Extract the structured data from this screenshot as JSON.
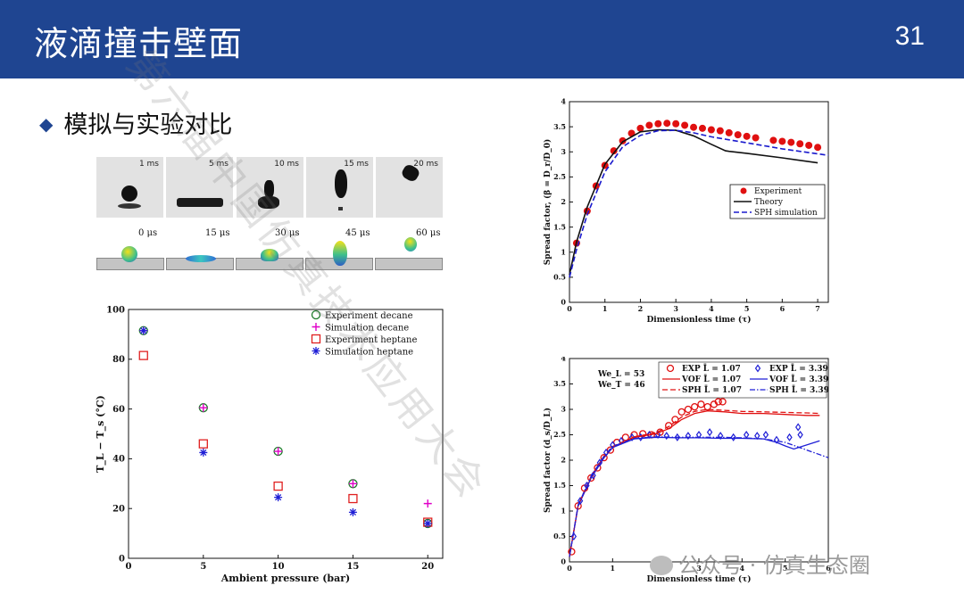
{
  "slide": {
    "title": "液滴撞击壁面",
    "page_number": "31",
    "bullet": "模拟与实验对比",
    "accent": "#1f4591"
  },
  "experiment_frames": [
    "1 ms",
    "5 ms",
    "10 ms",
    "15 ms",
    "20 ms"
  ],
  "simulation_frames": [
    "0 μs",
    "15 μs",
    "30 μs",
    "45 μs",
    "60 μs"
  ],
  "watermark": "第六届中国仿真技术应用大会",
  "logo": "公众号 · 仿真生态圈",
  "chart_data": [
    {
      "type": "scatter",
      "xlabel": "Ambient pressure (bar)",
      "ylabel": "T_L − T_s (°C)",
      "xlim": [
        0,
        21
      ],
      "ylim": [
        0,
        100
      ],
      "xticks": [
        0,
        5,
        10,
        15,
        20
      ],
      "yticks": [
        0,
        20,
        40,
        60,
        80,
        100
      ],
      "legend_position": "top-right",
      "series": [
        {
          "name": "Experiment decane",
          "marker": "circle",
          "color": "#1e7b2b",
          "x": [
            1,
            5,
            10,
            15,
            20
          ],
          "y": [
            91.5,
            60.5,
            43,
            30,
            14
          ]
        },
        {
          "name": "Simulation  decane",
          "marker": "plus",
          "color": "#e000c8",
          "x": [
            1,
            5,
            10,
            15,
            20
          ],
          "y": [
            91.5,
            60.5,
            43,
            30,
            22
          ]
        },
        {
          "name": "Experiment heptane",
          "marker": "square",
          "color": "#e02020",
          "x": [
            1,
            5,
            10,
            15,
            20
          ],
          "y": [
            81.5,
            46,
            29,
            24,
            14.5
          ]
        },
        {
          "name": "Simulation  heptane",
          "marker": "asterisk",
          "color": "#1f1fd6",
          "x": [
            1,
            5,
            10,
            15,
            20
          ],
          "y": [
            91.5,
            42.5,
            24.5,
            18.5,
            14
          ]
        }
      ]
    },
    {
      "type": "line",
      "xlabel": "Dimensionless time (τ)",
      "ylabel": "Spread factor, (β = D_r/D_0)",
      "xlim": [
        0,
        7.3
      ],
      "ylim": [
        0,
        4
      ],
      "xticks": [
        0,
        1,
        2,
        3,
        4,
        5,
        6,
        7
      ],
      "yticks": [
        0,
        0.5,
        1,
        1.5,
        2,
        2.5,
        3,
        3.5,
        4
      ],
      "legend_position": "right",
      "series": [
        {
          "name": "Experiment",
          "style": "dots",
          "color": "#e01010",
          "x": [
            0.2,
            0.5,
            0.75,
            1.0,
            1.25,
            1.5,
            1.75,
            2.0,
            2.25,
            2.5,
            2.75,
            3.0,
            3.25,
            3.5,
            3.75,
            4.0,
            4.25,
            4.5,
            4.75,
            5.0,
            5.25,
            5.75,
            6.0,
            6.25,
            6.5,
            6.75,
            7.0
          ],
          "y": [
            1.18,
            1.82,
            2.32,
            2.73,
            3.02,
            3.22,
            3.37,
            3.47,
            3.53,
            3.56,
            3.57,
            3.56,
            3.53,
            3.49,
            3.47,
            3.44,
            3.42,
            3.38,
            3.34,
            3.31,
            3.28,
            3.23,
            3.21,
            3.19,
            3.16,
            3.13,
            3.09
          ]
        },
        {
          "name": "Theory",
          "style": "solid",
          "color": "#111111",
          "x": [
            0,
            0.2,
            0.5,
            1.0,
            1.5,
            2.0,
            2.5,
            3.0,
            3.5,
            4.0,
            4.4,
            4.5,
            5.0,
            6.0,
            7.0
          ],
          "y": [
            0.55,
            1.2,
            1.9,
            2.75,
            3.2,
            3.4,
            3.44,
            3.43,
            3.32,
            3.15,
            3.02,
            3.01,
            2.97,
            2.88,
            2.78
          ]
        },
        {
          "name": "SPH simulation",
          "style": "dashed",
          "color": "#1a1acd",
          "x": [
            0,
            0.2,
            0.5,
            1.0,
            1.5,
            2.0,
            2.5,
            3.0,
            3.5,
            4.0,
            5.0,
            6.0,
            7.0,
            7.3
          ],
          "y": [
            0.5,
            1.05,
            1.75,
            2.6,
            3.1,
            3.33,
            3.42,
            3.43,
            3.38,
            3.3,
            3.18,
            3.06,
            2.96,
            2.93
          ]
        }
      ]
    },
    {
      "type": "line",
      "xlabel": "Dimensionless time (τ)",
      "ylabel": "Spread factor (d_s/D_L)",
      "xlim": [
        0,
        6
      ],
      "ylim": [
        0,
        4
      ],
      "xticks": [
        0,
        1,
        2,
        3,
        4,
        5,
        6
      ],
      "yticks": [
        0,
        0.5,
        1,
        1.5,
        2,
        2.5,
        3,
        3.5,
        4
      ],
      "annotations": [
        "We_L = 53",
        "We_T = 46"
      ],
      "legend_position": "top-right",
      "series": [
        {
          "name": "EXP L̄ = 1.07",
          "style": "open-circles",
          "color": "#e01010",
          "x": [
            0.05,
            0.2,
            0.35,
            0.5,
            0.65,
            0.8,
            0.95,
            1.1,
            1.3,
            1.5,
            1.7,
            1.9,
            2.1,
            2.3,
            2.45,
            2.6,
            2.75,
            2.9,
            3.05,
            3.2,
            3.35,
            3.45,
            3.55
          ],
          "y": [
            0.2,
            1.1,
            1.45,
            1.65,
            1.85,
            2.05,
            2.2,
            2.35,
            2.45,
            2.5,
            2.52,
            2.5,
            2.55,
            2.68,
            2.8,
            2.95,
            3.0,
            3.05,
            3.1,
            3.05,
            3.1,
            3.15,
            3.15
          ]
        },
        {
          "name": "EXP L̄ = 3.39",
          "style": "open-diamonds",
          "color": "#1f1fd6",
          "x": [
            0.1,
            0.25,
            0.4,
            0.55,
            0.7,
            0.85,
            1.0,
            1.2,
            1.45,
            1.65,
            1.85,
            2.05,
            2.25,
            2.5,
            2.75,
            3.0,
            3.25,
            3.5,
            3.8,
            4.1,
            4.35,
            4.55,
            4.8,
            5.1,
            5.3,
            5.35
          ],
          "y": [
            0.5,
            1.2,
            1.5,
            1.7,
            1.95,
            2.15,
            2.3,
            2.38,
            2.45,
            2.45,
            2.5,
            2.5,
            2.48,
            2.45,
            2.48,
            2.5,
            2.55,
            2.48,
            2.45,
            2.5,
            2.48,
            2.5,
            2.4,
            2.45,
            2.65,
            2.5
          ]
        },
        {
          "name": "VOF L̄ = 1.07",
          "style": "solid",
          "color": "#e01010",
          "x": [
            0,
            0.2,
            0.5,
            0.8,
            1.0,
            1.5,
            2.0,
            2.3,
            2.6,
            2.9,
            3.2,
            3.6,
            4.0,
            4.5,
            5.0,
            5.5,
            5.8
          ],
          "y": [
            0.1,
            1.1,
            1.65,
            2.05,
            2.25,
            2.45,
            2.52,
            2.62,
            2.8,
            2.92,
            2.97,
            2.95,
            2.92,
            2.92,
            2.9,
            2.88,
            2.88
          ]
        },
        {
          "name": "VOF L̄ = 3.39",
          "style": "solid",
          "color": "#1f1fd6",
          "x": [
            0,
            0.2,
            0.5,
            0.8,
            1.0,
            1.5,
            2.0,
            2.5,
            3.0,
            3.5,
            4.0,
            4.5,
            4.8,
            5.0,
            5.2,
            5.5,
            5.8
          ],
          "y": [
            0.1,
            1.1,
            1.65,
            2.05,
            2.25,
            2.42,
            2.45,
            2.44,
            2.44,
            2.43,
            2.43,
            2.42,
            2.35,
            2.28,
            2.22,
            2.3,
            2.38
          ]
        },
        {
          "name": "SPH L̄ = 1.07",
          "style": "dashed",
          "color": "#e01010",
          "x": [
            0,
            0.2,
            0.5,
            0.8,
            1.0,
            1.5,
            2.0,
            2.3,
            2.6,
            2.9,
            3.2,
            3.6,
            4.0,
            4.5,
            5.0,
            5.5,
            5.8
          ],
          "y": [
            0.1,
            1.12,
            1.68,
            2.08,
            2.27,
            2.46,
            2.54,
            2.66,
            2.85,
            2.96,
            3.0,
            2.98,
            2.96,
            2.95,
            2.94,
            2.93,
            2.92
          ]
        },
        {
          "name": "SPH L̄ = 3.39",
          "style": "dash-dot",
          "color": "#1f1fd6",
          "x": [
            0,
            0.2,
            0.5,
            0.8,
            1.0,
            1.5,
            2.0,
            2.5,
            3.0,
            3.5,
            4.0,
            4.5,
            5.0,
            5.5,
            6.0
          ],
          "y": [
            0.1,
            1.12,
            1.68,
            2.08,
            2.27,
            2.43,
            2.46,
            2.45,
            2.45,
            2.45,
            2.44,
            2.42,
            2.35,
            2.2,
            2.05
          ]
        }
      ]
    }
  ]
}
